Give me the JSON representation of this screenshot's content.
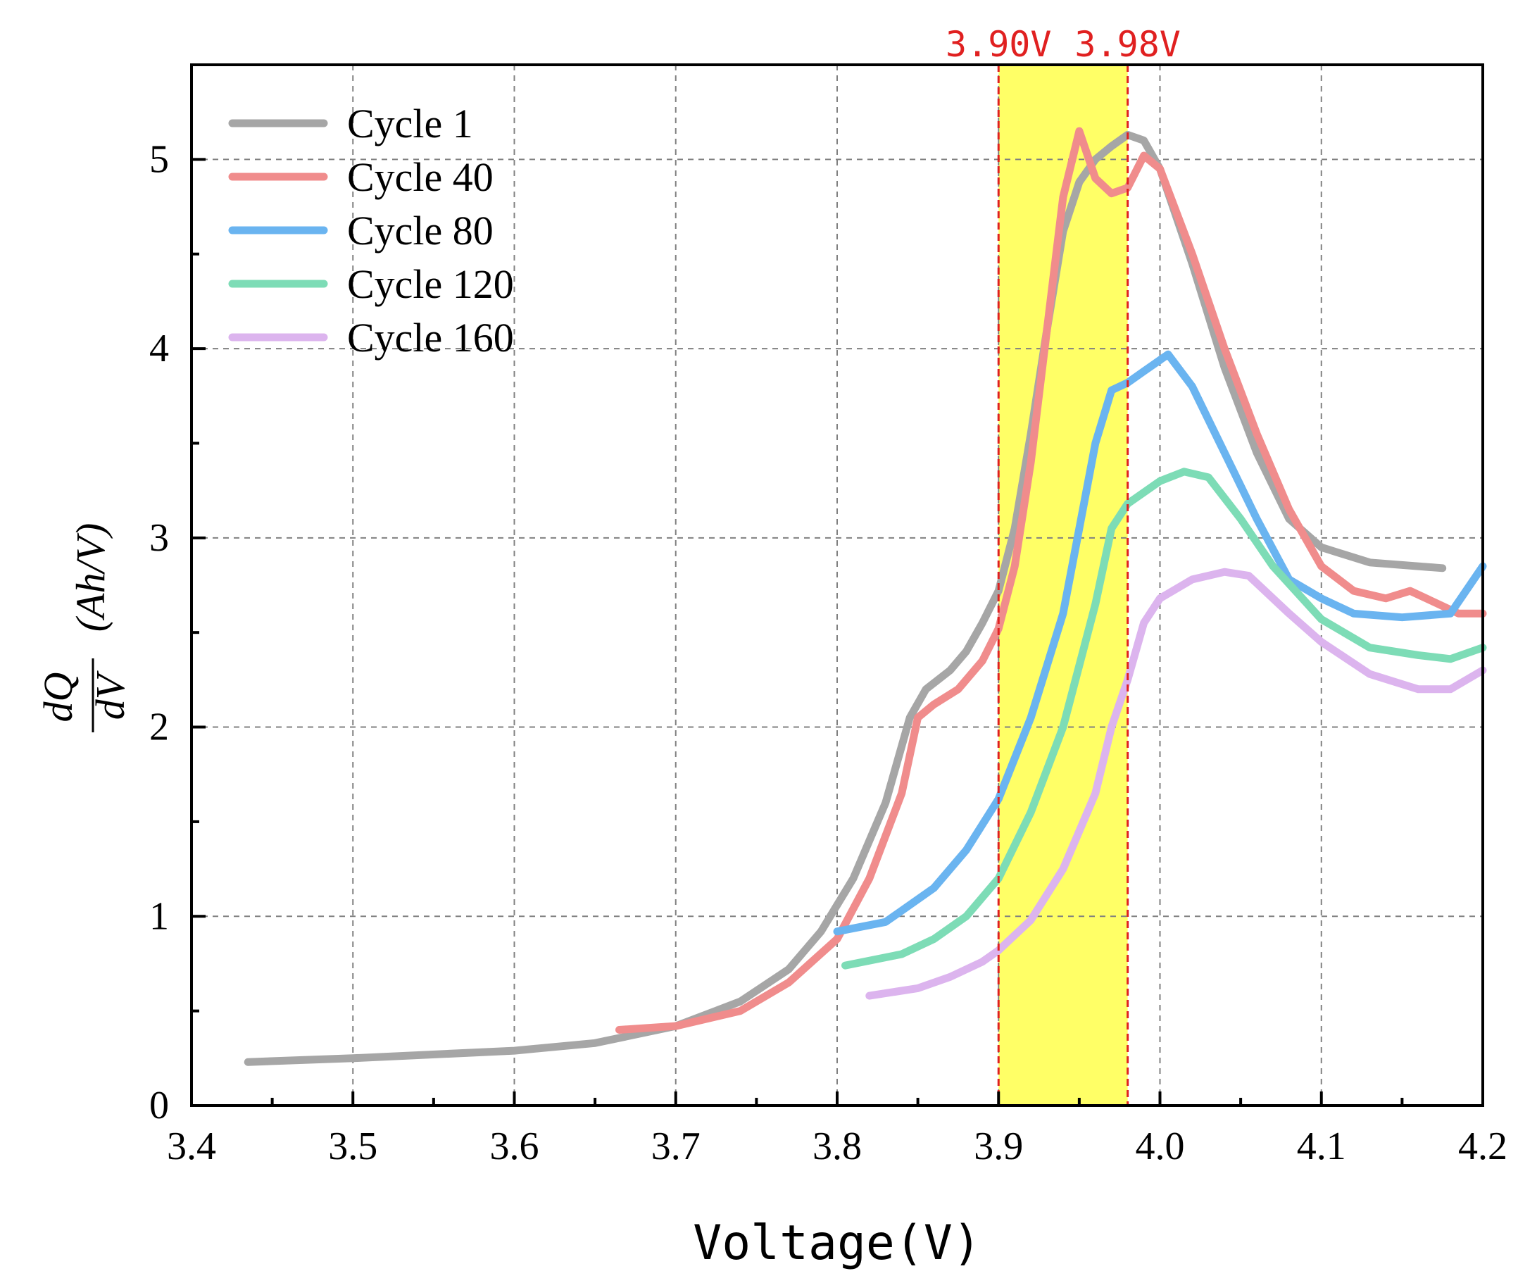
{
  "chart_data": {
    "type": "line",
    "title": "",
    "xlabel": "Voltage(V)",
    "ylabel": {
      "numerator": "dQ",
      "denominator": "dV",
      "unit": "(Ah/V)"
    },
    "xlim": [
      3.4,
      4.2
    ],
    "ylim": [
      0,
      5.5
    ],
    "xticks": [
      3.4,
      3.5,
      3.6,
      3.7,
      3.8,
      3.9,
      4.0,
      4.1,
      4.2
    ],
    "xtick_labels": [
      "3.4",
      "3.5",
      "3.6",
      "3.7",
      "3.8",
      "3.9",
      "4.0",
      "4.1",
      "4.2"
    ],
    "yticks": [
      0,
      1,
      2,
      3,
      4,
      5
    ],
    "ytick_labels": [
      "0",
      "1",
      "2",
      "3",
      "4",
      "5"
    ],
    "grid": true,
    "legend_position": "top-left",
    "highlight_band": {
      "x_start": 3.9,
      "x_end": 3.98,
      "color": "#ffff66",
      "line_color": "#e02020",
      "labels": [
        "3.90V",
        "3.98V"
      ]
    },
    "series": [
      {
        "name": "Cycle 1",
        "color": "#a6a6a6",
        "points": [
          [
            3.435,
            0.23
          ],
          [
            3.5,
            0.25
          ],
          [
            3.6,
            0.29
          ],
          [
            3.65,
            0.33
          ],
          [
            3.7,
            0.42
          ],
          [
            3.74,
            0.55
          ],
          [
            3.77,
            0.72
          ],
          [
            3.79,
            0.92
          ],
          [
            3.81,
            1.2
          ],
          [
            3.83,
            1.6
          ],
          [
            3.845,
            2.05
          ],
          [
            3.855,
            2.2
          ],
          [
            3.87,
            2.3
          ],
          [
            3.88,
            2.4
          ],
          [
            3.89,
            2.55
          ],
          [
            3.9,
            2.72
          ],
          [
            3.91,
            3.05
          ],
          [
            3.92,
            3.55
          ],
          [
            3.93,
            4.1
          ],
          [
            3.94,
            4.62
          ],
          [
            3.95,
            4.88
          ],
          [
            3.96,
            5.0
          ],
          [
            3.97,
            5.07
          ],
          [
            3.98,
            5.13
          ],
          [
            3.99,
            5.1
          ],
          [
            4.0,
            4.95
          ],
          [
            4.02,
            4.45
          ],
          [
            4.04,
            3.9
          ],
          [
            4.06,
            3.45
          ],
          [
            4.08,
            3.1
          ],
          [
            4.1,
            2.95
          ],
          [
            4.13,
            2.87
          ],
          [
            4.175,
            2.84
          ]
        ]
      },
      {
        "name": "Cycle 40",
        "color": "#f08c8c",
        "points": [
          [
            3.665,
            0.4
          ],
          [
            3.7,
            0.42
          ],
          [
            3.74,
            0.5
          ],
          [
            3.77,
            0.65
          ],
          [
            3.8,
            0.88
          ],
          [
            3.82,
            1.2
          ],
          [
            3.84,
            1.65
          ],
          [
            3.85,
            2.05
          ],
          [
            3.86,
            2.12
          ],
          [
            3.875,
            2.2
          ],
          [
            3.89,
            2.35
          ],
          [
            3.9,
            2.52
          ],
          [
            3.91,
            2.85
          ],
          [
            3.92,
            3.4
          ],
          [
            3.93,
            4.1
          ],
          [
            3.94,
            4.8
          ],
          [
            3.95,
            5.15
          ],
          [
            3.96,
            4.9
          ],
          [
            3.97,
            4.82
          ],
          [
            3.98,
            4.85
          ],
          [
            3.99,
            5.02
          ],
          [
            4.0,
            4.95
          ],
          [
            4.02,
            4.5
          ],
          [
            4.04,
            4.0
          ],
          [
            4.06,
            3.55
          ],
          [
            4.08,
            3.15
          ],
          [
            4.1,
            2.85
          ],
          [
            4.12,
            2.72
          ],
          [
            4.14,
            2.68
          ],
          [
            4.155,
            2.72
          ],
          [
            4.17,
            2.66
          ],
          [
            4.185,
            2.6
          ],
          [
            4.2,
            2.6
          ]
        ]
      },
      {
        "name": "Cycle 80",
        "color": "#6ab4f0",
        "points": [
          [
            3.8,
            0.92
          ],
          [
            3.83,
            0.97
          ],
          [
            3.86,
            1.15
          ],
          [
            3.88,
            1.35
          ],
          [
            3.9,
            1.62
          ],
          [
            3.92,
            2.05
          ],
          [
            3.94,
            2.6
          ],
          [
            3.95,
            3.05
          ],
          [
            3.96,
            3.5
          ],
          [
            3.97,
            3.78
          ],
          [
            3.98,
            3.82
          ],
          [
            3.99,
            3.88
          ],
          [
            4.005,
            3.97
          ],
          [
            4.02,
            3.8
          ],
          [
            4.04,
            3.45
          ],
          [
            4.06,
            3.1
          ],
          [
            4.08,
            2.78
          ],
          [
            4.1,
            2.68
          ],
          [
            4.12,
            2.6
          ],
          [
            4.15,
            2.58
          ],
          [
            4.18,
            2.6
          ],
          [
            4.2,
            2.85
          ]
        ]
      },
      {
        "name": "Cycle 120",
        "color": "#7ddcb6",
        "points": [
          [
            3.805,
            0.74
          ],
          [
            3.84,
            0.8
          ],
          [
            3.86,
            0.88
          ],
          [
            3.88,
            1.0
          ],
          [
            3.9,
            1.2
          ],
          [
            3.92,
            1.55
          ],
          [
            3.94,
            2.0
          ],
          [
            3.96,
            2.65
          ],
          [
            3.97,
            3.05
          ],
          [
            3.98,
            3.18
          ],
          [
            4.0,
            3.3
          ],
          [
            4.015,
            3.35
          ],
          [
            4.03,
            3.32
          ],
          [
            4.05,
            3.1
          ],
          [
            4.07,
            2.85
          ],
          [
            4.1,
            2.57
          ],
          [
            4.13,
            2.42
          ],
          [
            4.16,
            2.38
          ],
          [
            4.18,
            2.36
          ],
          [
            4.2,
            2.42
          ]
        ]
      },
      {
        "name": "Cycle 160",
        "color": "#dcb4ee",
        "points": [
          [
            3.82,
            0.58
          ],
          [
            3.85,
            0.62
          ],
          [
            3.87,
            0.68
          ],
          [
            3.89,
            0.76
          ],
          [
            3.9,
            0.82
          ],
          [
            3.92,
            0.98
          ],
          [
            3.94,
            1.25
          ],
          [
            3.96,
            1.65
          ],
          [
            3.97,
            2.0
          ],
          [
            3.98,
            2.25
          ],
          [
            3.99,
            2.55
          ],
          [
            4.0,
            2.68
          ],
          [
            4.02,
            2.78
          ],
          [
            4.04,
            2.82
          ],
          [
            4.055,
            2.8
          ],
          [
            4.08,
            2.6
          ],
          [
            4.1,
            2.45
          ],
          [
            4.13,
            2.28
          ],
          [
            4.16,
            2.2
          ],
          [
            4.18,
            2.2
          ],
          [
            4.2,
            2.3
          ]
        ]
      }
    ]
  }
}
